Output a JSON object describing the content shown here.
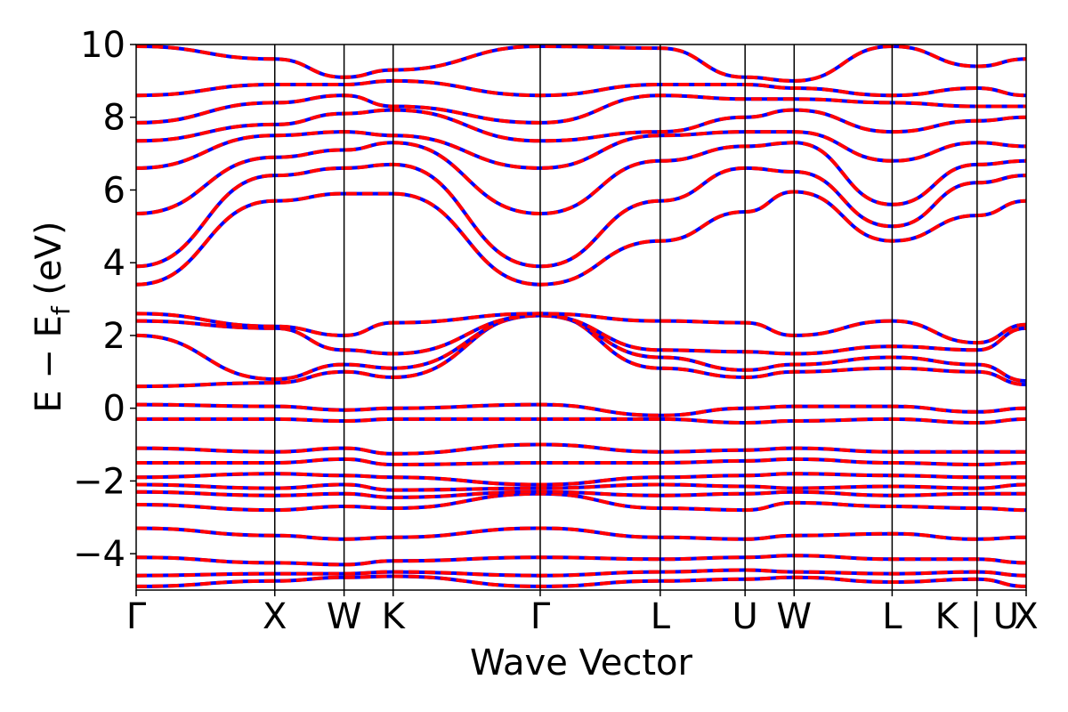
{
  "chart_data": {
    "type": "line",
    "title": "",
    "xlabel": "Wave Vector",
    "ylabel": "E − E_f (eV)",
    "ylabel_parts": {
      "main": "E − E",
      "sub": "f",
      "unit": " (eV)"
    },
    "ylim": [
      -5,
      10
    ],
    "yticks": [
      10,
      8,
      6,
      4,
      2,
      0,
      -2,
      -4
    ],
    "ytick_labels": [
      "10",
      "8",
      "6",
      "4",
      "2",
      "0",
      "−2",
      "−4"
    ],
    "kpath": [
      {
        "label": "Γ",
        "k": 0.0
      },
      {
        "label": "X",
        "k": 1.0
      },
      {
        "label": "W",
        "k": 1.5
      },
      {
        "label": "K",
        "k": 1.854
      },
      {
        "label": "Γ",
        "k": 2.915
      },
      {
        "label": "L",
        "k": 3.781
      },
      {
        "label": "U",
        "k": 4.393
      },
      {
        "label": "W",
        "k": 4.747
      },
      {
        "label": "L",
        "k": 5.454
      },
      {
        "label": "K | U",
        "k": 6.067
      },
      {
        "label": "X",
        "k": 6.421
      }
    ],
    "series_styles": [
      {
        "color": "#0000ff",
        "dash": "solid"
      },
      {
        "color": "#ff0000",
        "dash": "dashed"
      }
    ],
    "grid": false,
    "bands": [
      {
        "values": [
          -4.9,
          -4.75,
          -4.65,
          -4.62,
          -4.9,
          -4.75,
          -4.7,
          -4.65,
          -4.78,
          -4.7,
          -4.9
        ]
      },
      {
        "values": [
          -4.6,
          -4.55,
          -4.55,
          -4.5,
          -4.6,
          -4.5,
          -4.45,
          -4.5,
          -4.55,
          -4.5,
          -4.6
        ]
      },
      {
        "values": [
          -4.1,
          -4.25,
          -4.3,
          -4.2,
          -4.1,
          -4.15,
          -4.1,
          -4.05,
          -4.15,
          -4.15,
          -4.25
        ]
      },
      {
        "values": [
          -3.3,
          -3.5,
          -3.6,
          -3.55,
          -3.3,
          -3.55,
          -3.6,
          -3.5,
          -3.45,
          -3.6,
          -3.55
        ]
      },
      {
        "values": [
          -2.65,
          -2.8,
          -2.7,
          -2.75,
          -2.35,
          -2.75,
          -2.8,
          -2.6,
          -2.7,
          -2.75,
          -2.8
        ]
      },
      {
        "values": [
          -2.3,
          -2.4,
          -2.35,
          -2.45,
          -2.3,
          -2.4,
          -2.35,
          -2.3,
          -2.4,
          -2.35,
          -2.35
        ]
      },
      {
        "values": [
          -2.1,
          -2.2,
          -2.1,
          -2.25,
          -2.2,
          -2.1,
          -2.15,
          -2.2,
          -2.15,
          -2.2,
          -2.1
        ]
      },
      {
        "values": [
          -1.9,
          -1.8,
          -1.85,
          -1.9,
          -2.1,
          -1.9,
          -1.85,
          -1.8,
          -1.85,
          -1.9,
          -1.9
        ]
      },
      {
        "values": [
          -1.5,
          -1.5,
          -1.4,
          -1.55,
          -1.5,
          -1.5,
          -1.45,
          -1.4,
          -1.5,
          -1.55,
          -1.5
        ]
      },
      {
        "values": [
          -1.1,
          -1.2,
          -1.1,
          -1.25,
          -1.0,
          -1.2,
          -1.15,
          -1.1,
          -1.2,
          -1.2,
          -1.2
        ]
      },
      {
        "values": [
          -0.3,
          -0.3,
          -0.35,
          -0.3,
          -0.3,
          -0.3,
          -0.4,
          -0.35,
          -0.3,
          -0.4,
          -0.3
        ]
      },
      {
        "values": [
          0.1,
          0.05,
          -0.05,
          0.0,
          0.1,
          -0.2,
          0.0,
          0.05,
          0.05,
          -0.1,
          0.0
        ]
      },
      {
        "values": [
          0.6,
          0.7,
          1.0,
          0.85,
          2.6,
          1.1,
          0.85,
          1.0,
          1.1,
          1.0,
          0.65
        ]
      },
      {
        "values": [
          2.0,
          0.8,
          1.2,
          1.1,
          2.55,
          1.4,
          1.05,
          1.2,
          1.4,
          1.2,
          0.75
        ]
      },
      {
        "values": [
          2.4,
          2.2,
          1.6,
          1.5,
          2.55,
          1.6,
          1.55,
          1.5,
          1.7,
          1.6,
          2.2
        ]
      },
      {
        "values": [
          2.6,
          2.25,
          2.0,
          2.35,
          2.6,
          2.4,
          2.35,
          2.0,
          2.4,
          1.8,
          2.3
        ]
      },
      {
        "values": [
          3.4,
          5.7,
          5.9,
          5.9,
          3.4,
          4.6,
          5.4,
          5.95,
          4.6,
          5.3,
          5.7
        ]
      },
      {
        "values": [
          3.9,
          6.4,
          6.6,
          6.7,
          3.9,
          5.7,
          6.6,
          6.5,
          5.0,
          6.2,
          6.4
        ]
      },
      {
        "values": [
          5.35,
          6.9,
          7.1,
          7.3,
          5.35,
          6.8,
          7.2,
          7.3,
          5.6,
          6.7,
          6.8
        ]
      },
      {
        "values": [
          6.6,
          7.5,
          7.6,
          7.5,
          6.6,
          7.5,
          7.6,
          7.6,
          6.8,
          7.3,
          7.2
        ]
      },
      {
        "values": [
          7.35,
          7.8,
          8.1,
          8.2,
          7.35,
          7.6,
          8.0,
          8.2,
          7.6,
          7.9,
          8.0
        ]
      },
      {
        "values": [
          7.85,
          8.4,
          8.6,
          8.3,
          7.85,
          8.6,
          8.5,
          8.5,
          8.4,
          8.3,
          8.3
        ]
      },
      {
        "values": [
          8.6,
          8.9,
          8.9,
          9.0,
          8.6,
          8.9,
          8.9,
          8.8,
          8.6,
          8.8,
          8.6
        ]
      },
      {
        "values": [
          9.95,
          9.6,
          9.1,
          9.3,
          9.95,
          9.9,
          9.1,
          9.0,
          9.95,
          9.4,
          9.6
        ]
      }
    ]
  }
}
